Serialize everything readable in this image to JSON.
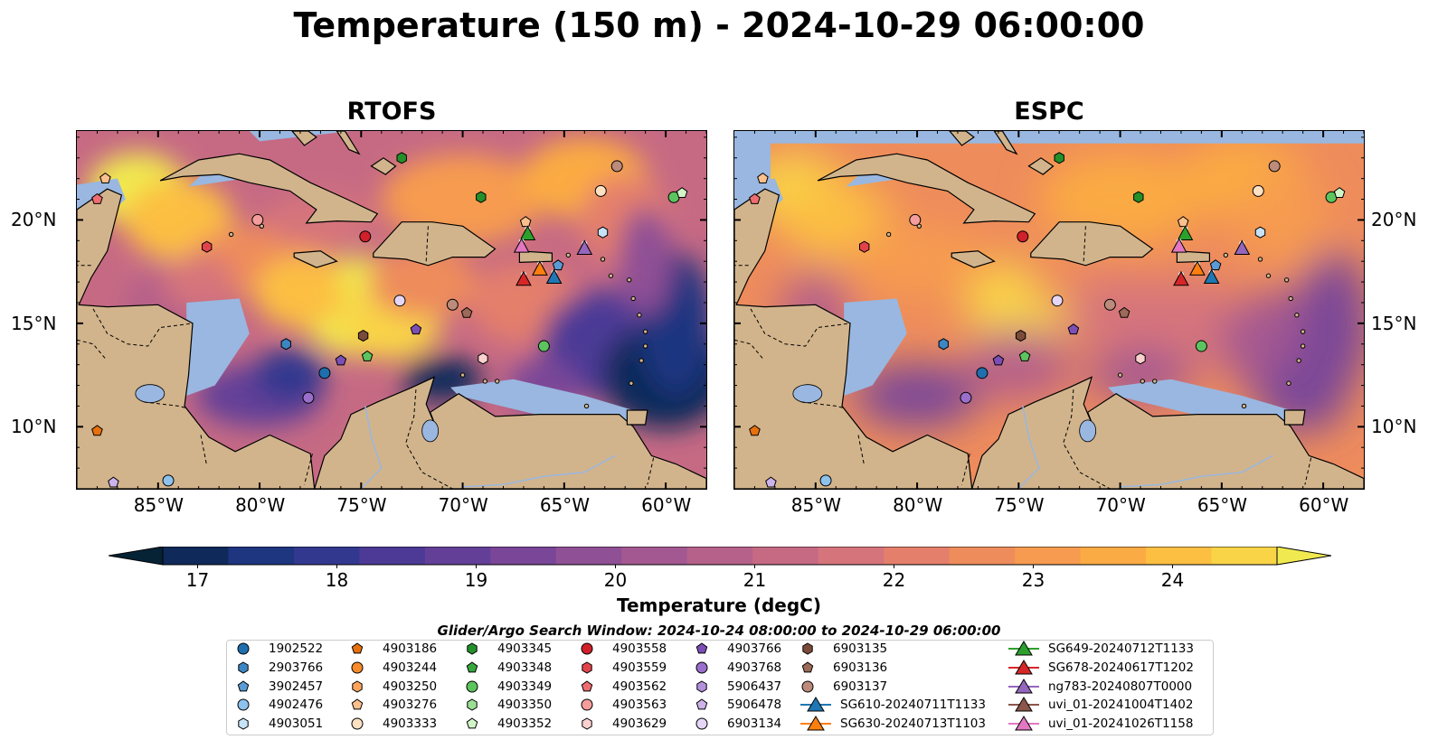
{
  "title": "Temperature (150 m) - 2024-10-29 06:00:00",
  "panels": {
    "left": {
      "title": "RTOFS"
    },
    "right": {
      "title": "ESPC"
    }
  },
  "axes": {
    "lon_ticks": [
      "85°W",
      "80°W",
      "75°W",
      "70°W",
      "65°W",
      "60°W"
    ],
    "lat_ticks": [
      "20°N",
      "15°N",
      "10°N"
    ]
  },
  "colorbar": {
    "label": "Temperature (degC)",
    "ticks": [
      "17",
      "18",
      "19",
      "20",
      "21",
      "22",
      "23",
      "24"
    ],
    "min": 16.75,
    "max": 24.75,
    "colors": [
      "#062336",
      "#0f2a5a",
      "#1e3580",
      "#33388f",
      "#4c3a96",
      "#633f98",
      "#7a4698",
      "#8f5095",
      "#a45891",
      "#b6618a",
      "#c66a84",
      "#d6747c",
      "#e47f6c",
      "#ee8c5c",
      "#f69b4f",
      "#fbab43",
      "#fcbf42",
      "#f9d447",
      "#f0ea50"
    ]
  },
  "legend": {
    "title": "Glider/Argo Search Window: 2024-10-24 08:00:00 to 2024-10-29 06:00:00",
    "columns": [
      [
        {
          "label": "1902522",
          "marker": "circle",
          "color": "#1f6fae"
        },
        {
          "label": "2903766",
          "marker": "hexagon",
          "color": "#3c86c3"
        },
        {
          "label": "3902457",
          "marker": "pentagon",
          "color": "#5a9bd5"
        },
        {
          "label": "4902476",
          "marker": "circle",
          "color": "#8dc2ec"
        },
        {
          "label": "4903051",
          "marker": "hexagon",
          "color": "#c6e3f7"
        }
      ],
      [
        {
          "label": "4903186",
          "marker": "pentagon",
          "color": "#e8700a"
        },
        {
          "label": "4903244",
          "marker": "circle",
          "color": "#f78b2a"
        },
        {
          "label": "4903250",
          "marker": "hexagon",
          "color": "#fba45a"
        },
        {
          "label": "4903276",
          "marker": "pentagon",
          "color": "#fdc08c"
        },
        {
          "label": "4903333",
          "marker": "circle",
          "color": "#fee0c2"
        }
      ],
      [
        {
          "label": "4903345",
          "marker": "hexagon",
          "color": "#24902a"
        },
        {
          "label": "4903348",
          "marker": "pentagon",
          "color": "#36a83d"
        },
        {
          "label": "4903349",
          "marker": "circle",
          "color": "#5cc45e"
        },
        {
          "label": "4903350",
          "marker": "hexagon",
          "color": "#9adf95"
        },
        {
          "label": "4903352",
          "marker": "pentagon",
          "color": "#d2f5c8"
        }
      ],
      [
        {
          "label": "4903558",
          "marker": "circle",
          "color": "#d0202a"
        },
        {
          "label": "4903559",
          "marker": "hexagon",
          "color": "#e2434b"
        },
        {
          "label": "4903562",
          "marker": "pentagon",
          "color": "#ee6d71"
        },
        {
          "label": "4903563",
          "marker": "circle",
          "color": "#f59d9c"
        },
        {
          "label": "4903629",
          "marker": "hexagon",
          "color": "#fbd1cf"
        }
      ],
      [
        {
          "label": "4903766",
          "marker": "pentagon",
          "color": "#7d4fb6"
        },
        {
          "label": "4903768",
          "marker": "circle",
          "color": "#9a6fcb"
        },
        {
          "label": "5906437",
          "marker": "hexagon",
          "color": "#b391dc"
        },
        {
          "label": "5906478",
          "marker": "pentagon",
          "color": "#ccb3ea"
        },
        {
          "label": "6903134",
          "marker": "circle",
          "color": "#e5d6f6"
        }
      ],
      [
        {
          "label": "6903135",
          "marker": "hexagon",
          "color": "#7b4b3a"
        },
        {
          "label": "6903136",
          "marker": "pentagon",
          "color": "#9c6a58"
        },
        {
          "label": "6903137",
          "marker": "circle",
          "color": "#bc8b7b"
        },
        {
          "label": "SG610-20240711T1133",
          "marker": "triangle-line",
          "color": "#1f77b4"
        },
        {
          "label": "SG630-20240713T1103",
          "marker": "triangle-line",
          "color": "#ff7f0e"
        }
      ],
      [
        {
          "label": "SG649-20240712T1133",
          "marker": "triangle-line",
          "color": "#2ca02c"
        },
        {
          "label": "SG678-20240617T1202",
          "marker": "triangle-line",
          "color": "#d62728"
        },
        {
          "label": "ng783-20240807T0000",
          "marker": "triangle-line",
          "color": "#9467bd"
        },
        {
          "label": "uvi_01-20241004T1402",
          "marker": "triangle-line",
          "color": "#8c564b"
        },
        {
          "label": "uvi_01-20241026T1158",
          "marker": "triangle-line",
          "color": "#e377c2"
        }
      ]
    ]
  },
  "colors": {
    "land": "#d2b48c",
    "shelf": "#99b7e0",
    "deep": "#062336"
  }
}
